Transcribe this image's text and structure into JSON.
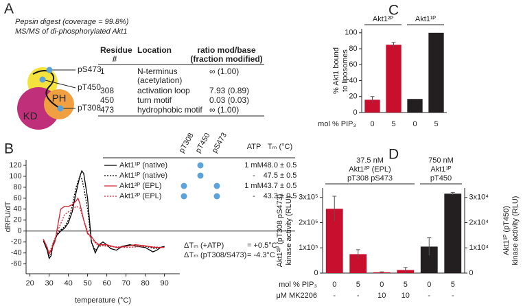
{
  "panel_labels": [
    "A",
    "B",
    "C",
    "D"
  ],
  "panel_a": {
    "caption": [
      "Pepsin digest (coverage = 99.8%)",
      "MS/MS of di-phosphorylated Akt1"
    ],
    "diagram": {
      "sites": [
        "pS473",
        "pT450",
        "pT308"
      ],
      "domains": [
        "PH",
        "KD"
      ],
      "highlight_site": 1
    },
    "table": {
      "header": [
        [
          "Residue",
          "#"
        ],
        [
          "Location"
        ],
        [
          "ratio mod/base",
          "(fraction modified)"
        ]
      ],
      "rows": [
        [
          [
            "1"
          ],
          [
            "N-terminus",
            "(acetylation)"
          ],
          [
            "∞ (1.00)"
          ]
        ],
        [
          [
            "308"
          ],
          [
            "activation loop"
          ],
          [
            "7.93 (0.89)"
          ]
        ],
        [
          [
            "450"
          ],
          [
            "turn motif"
          ],
          [
            "0.03 (0.03)"
          ]
        ],
        [
          [
            "473"
          ],
          [
            "hydrophobic motif"
          ],
          [
            "∞ (1.00)"
          ]
        ]
      ],
      "highlight_row": 2,
      "highlight_color": "#d0202e"
    }
  },
  "chart_data": [
    {
      "type": "line",
      "ylabel": "dRFU/dT",
      "xlabel": "temperature (°C)",
      "xlim": [
        18,
        98
      ],
      "ylim": [
        -78,
        130
      ],
      "xticks": [
        20,
        30,
        40,
        50,
        60,
        70,
        80,
        90
      ],
      "yticks": [
        -60,
        -40,
        -20,
        0,
        20,
        40,
        60,
        80,
        100,
        120
      ],
      "zero_line": true,
      "series": [
        {
          "name": "Akt1¹ᴾ (native)",
          "color": "#000000",
          "dashed": false,
          "x": [
            27,
            29,
            30,
            31,
            32,
            34,
            36,
            38,
            40,
            42,
            44,
            46,
            47,
            48,
            50,
            52,
            54,
            56,
            58,
            60,
            62,
            65,
            68,
            72,
            76,
            80,
            84,
            86,
            88,
            90
          ],
          "values": [
            -18,
            -35,
            -50,
            -45,
            -25,
            -8,
            0,
            5,
            15,
            35,
            70,
            100,
            110,
            105,
            60,
            -20,
            -40,
            -25,
            -20,
            -25,
            -32,
            -35,
            -28,
            -25,
            -28,
            -30,
            -38,
            -35,
            -30,
            -28
          ]
        },
        {
          "name": "Akt1¹ᴾ (native)",
          "color": "#000000",
          "dashed": true,
          "x": [
            27,
            29,
            30,
            31,
            32,
            34,
            36,
            38,
            40,
            42,
            44,
            46,
            47,
            48,
            50,
            52,
            54,
            56,
            60,
            65,
            70,
            75,
            80,
            85,
            90
          ],
          "values": [
            -15,
            -30,
            -45,
            -42,
            -22,
            -6,
            2,
            8,
            20,
            45,
            80,
            100,
            95,
            80,
            40,
            -20,
            -35,
            -28,
            -25,
            -30,
            -27,
            -25,
            -28,
            -32,
            -28
          ]
        },
        {
          "name": "Akt1²ᴾ (EPL)",
          "color": "#d0202e",
          "dashed": false,
          "x": [
            27,
            29,
            30,
            31,
            33,
            35,
            36,
            38,
            40,
            42,
            44,
            45,
            46,
            48,
            50,
            52,
            54,
            56,
            60,
            65,
            70,
            75,
            80,
            85,
            90
          ],
          "values": [
            -15,
            -30,
            -42,
            -35,
            -20,
            20,
            40,
            45,
            45,
            48,
            55,
            60,
            50,
            20,
            -5,
            -10,
            -20,
            -25,
            -25,
            -30,
            -28,
            -25,
            -27,
            -30,
            -30
          ]
        },
        {
          "name": "Akt1²ᴾ (EPL)",
          "color": "#d0202e",
          "dashed": true,
          "x": [
            27,
            30,
            33,
            35,
            38,
            40,
            42,
            44,
            46,
            48,
            50,
            52,
            55,
            60,
            70,
            80,
            90
          ],
          "values": [
            -15,
            -40,
            -15,
            5,
            30,
            35,
            38,
            45,
            42,
            20,
            0,
            -15,
            -25,
            -28,
            -30,
            -28,
            -30
          ]
        }
      ],
      "legend": {
        "columns": [
          "pT308",
          "pT450",
          "pS473",
          "ATP",
          "Tₘ (°C)"
        ],
        "dot_color": "#5ba3d9",
        "rows": [
          {
            "sites": [
              false,
              true,
              false
            ],
            "atp": "1 mM",
            "tm": "48.0 ± 0.5"
          },
          {
            "sites": [
              false,
              true,
              false
            ],
            "atp": "-",
            "tm": "47.5 ± 0.5"
          },
          {
            "sites": [
              true,
              false,
              true
            ],
            "atp": "1 mM",
            "tm": "43.7 ± 0.5"
          },
          {
            "sites": [
              true,
              false,
              true
            ],
            "atp": "-",
            "tm": "43.3 ± 0.5"
          }
        ]
      },
      "annotations": [
        [
          "ΔTₘ (+ATP)",
          "= +0.5°C"
        ],
        [
          "ΔTₘ (pT308/S473)",
          "= -4.3°C"
        ]
      ]
    },
    {
      "type": "bar",
      "ylabel": [
        "% Akt1 bound",
        "to liposomes"
      ],
      "ylim": [
        0,
        105
      ],
      "yticks": [
        0,
        20,
        40,
        60,
        80,
        100
      ],
      "row_labels": [
        "mol % PIP₃"
      ],
      "groups": [
        {
          "header": [
            "Akt1²ᴾ"
          ],
          "rows": [
            [
              "0",
              "5"
            ]
          ]
        },
        {
          "header": [
            "Akt1¹ᴾ"
          ],
          "rows": [
            [
              "0",
              "5"
            ]
          ]
        }
      ],
      "series": [
        {
          "color": "#c8102e",
          "axis": "y",
          "values": [
            16,
            85,
            null,
            null
          ],
          "errors": [
            4,
            3,
            null,
            null
          ]
        },
        {
          "color": "#231f20",
          "axis": "y",
          "values": [
            null,
            null,
            17,
            100
          ],
          "errors": [
            null,
            null,
            null,
            null
          ]
        }
      ]
    },
    {
      "type": "bar",
      "ylabel": [
        "Akt1²ᴾ (pT308 pS473)",
        "kinase activity (RLU)"
      ],
      "y2label": [
        "Akt1¹ᴾ (pT450)",
        "kinase activity (RLU)"
      ],
      "ylim": [
        0,
        337500
      ],
      "yticks": [
        0,
        {
          "value": 100000,
          "label": "1x10⁵"
        },
        {
          "value": 200000,
          "label": "2x10⁵"
        },
        {
          "value": 300000,
          "label": "3x10⁵"
        }
      ],
      "y2lim": [
        0,
        33750
      ],
      "y2ticks": [
        0,
        {
          "value": 10000,
          "label": "1x10⁴"
        },
        {
          "value": 20000,
          "label": "2x10⁴"
        },
        {
          "value": 30000,
          "label": "3x10⁴"
        }
      ],
      "row_labels": [
        "mol % PIP₃",
        "μM MK2206"
      ],
      "groups": [
        {
          "header": [
            "37.5 nM",
            "Akt1²ᴾ (EPL)",
            "pT308 pS473"
          ],
          "rows": [
            [
              "0",
              "5",
              "0",
              "5"
            ],
            [
              "-",
              "-",
              "10",
              "10"
            ]
          ]
        },
        {
          "header": [
            "750 nM",
            "Akt1¹ᴾ",
            "pT450"
          ],
          "rows": [
            [
              "0",
              "5"
            ],
            [
              "-",
              "-"
            ]
          ]
        }
      ],
      "series": [
        {
          "color": "#c8102e",
          "axis": "y",
          "values": [
            255000,
            75000,
            3000,
            12000,
            null,
            null
          ],
          "errors": [
            50000,
            18000,
            2000,
            10000,
            null,
            null
          ]
        },
        {
          "color": "#231f20",
          "axis": "y2",
          "values": [
            null,
            null,
            null,
            null,
            10500,
            31500
          ],
          "errors": [
            null,
            null,
            null,
            null,
            3500,
            500
          ]
        }
      ]
    }
  ]
}
